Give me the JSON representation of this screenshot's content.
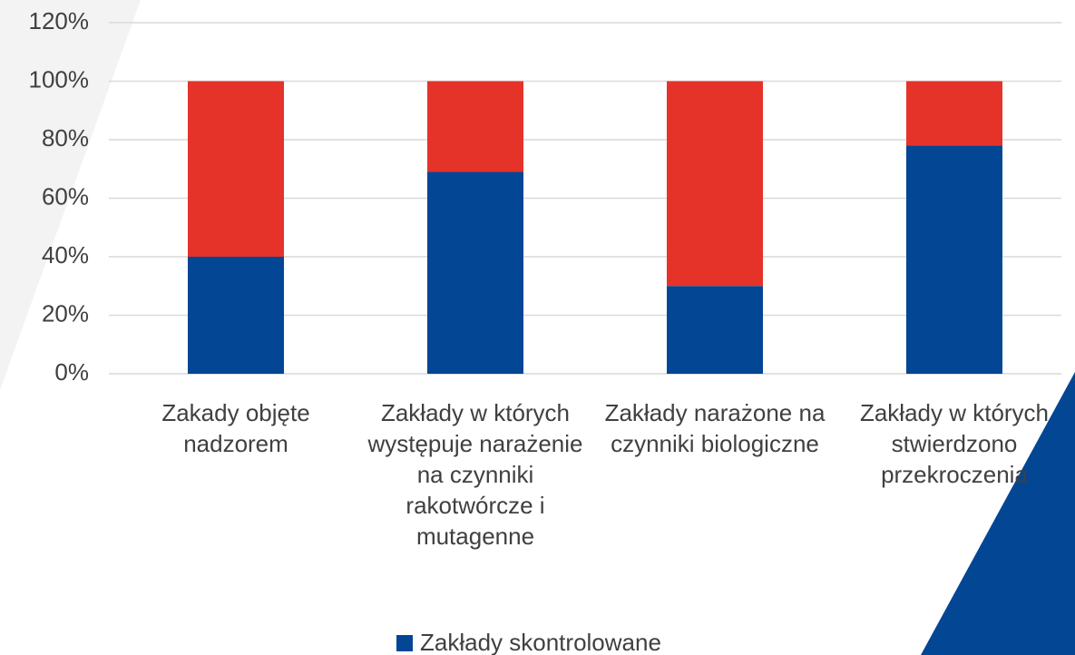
{
  "chart_data": {
    "type": "stacked_bar",
    "categories": [
      "Zakady objęte nadzorem",
      "Zakłady w których występuje narażenie na czynniki rakotwórcze i mutagenne",
      "Zakłady narażone na czynniki biologiczne",
      "Zakłady w których stwierdzono przekroczenia"
    ],
    "series": [
      {
        "name": "Zakłady skontrolowane",
        "color": "#034694",
        "values": [
          40,
          69,
          30,
          78
        ]
      },
      {
        "color": "#e5332a",
        "values": [
          60,
          31,
          70,
          22
        ]
      }
    ],
    "ylim": [
      0,
      120
    ],
    "yticks": [
      {
        "value": 0,
        "label": "0%"
      },
      {
        "value": 20,
        "label": "20%"
      },
      {
        "value": 40,
        "label": "40%"
      },
      {
        "value": 60,
        "label": "60%"
      },
      {
        "value": 80,
        "label": "80%"
      },
      {
        "value": 100,
        "label": "100%"
      },
      {
        "value": 120,
        "label": "120%"
      }
    ],
    "grid": true
  }
}
